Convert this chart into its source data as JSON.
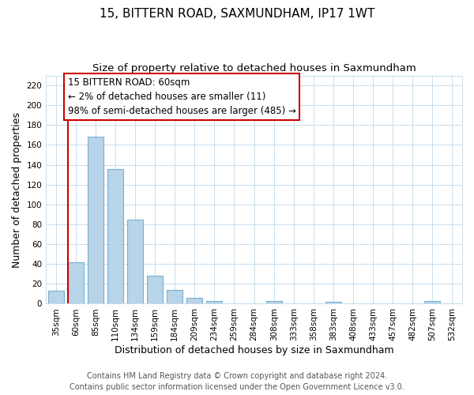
{
  "title": "15, BITTERN ROAD, SAXMUNDHAM, IP17 1WT",
  "subtitle": "Size of property relative to detached houses in Saxmundham",
  "xlabel": "Distribution of detached houses by size in Saxmundham",
  "ylabel": "Number of detached properties",
  "footer_line1": "Contains HM Land Registry data © Crown copyright and database right 2024.",
  "footer_line2": "Contains public sector information licensed under the Open Government Licence v3.0.",
  "categories": [
    "35sqm",
    "60sqm",
    "85sqm",
    "110sqm",
    "134sqm",
    "159sqm",
    "184sqm",
    "209sqm",
    "234sqm",
    "259sqm",
    "284sqm",
    "308sqm",
    "333sqm",
    "358sqm",
    "383sqm",
    "408sqm",
    "433sqm",
    "457sqm",
    "482sqm",
    "507sqm",
    "532sqm"
  ],
  "values": [
    13,
    42,
    168,
    136,
    85,
    28,
    14,
    6,
    3,
    0,
    0,
    3,
    0,
    0,
    2,
    0,
    0,
    0,
    0,
    3,
    0
  ],
  "bar_color": "#b8d4e8",
  "bar_edge_color": "#7aaed0",
  "highlight_color": "#cc0000",
  "ylim": [
    0,
    230
  ],
  "yticks": [
    0,
    20,
    40,
    60,
    80,
    100,
    120,
    140,
    160,
    180,
    200,
    220
  ],
  "annotation_title": "15 BITTERN ROAD: 60sqm",
  "annotation_line1": "← 2% of detached houses are smaller (11)",
  "annotation_line2": "98% of semi-detached houses are larger (485) →",
  "vline_x": 1,
  "title_fontsize": 11,
  "subtitle_fontsize": 9.5,
  "axis_label_fontsize": 9,
  "tick_fontsize": 7.5,
  "annotation_fontsize": 8.5,
  "footer_fontsize": 7
}
